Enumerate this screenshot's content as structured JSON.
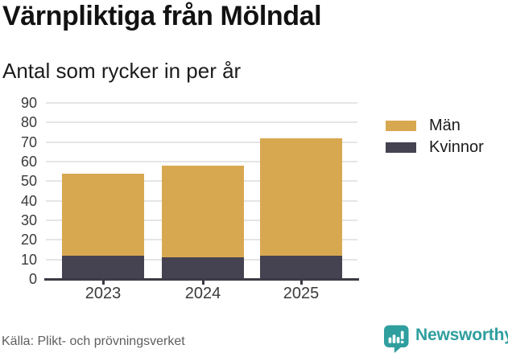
{
  "chart_data": {
    "type": "bar",
    "stacked": true,
    "title": "Värnpliktiga från Mölndal",
    "subtitle": "Antal som rycker in per år",
    "categories": [
      "2023",
      "2024",
      "2025"
    ],
    "series": [
      {
        "name": "Män",
        "color": "#d8a851",
        "values": [
          42,
          47,
          60
        ]
      },
      {
        "name": "Kvinnor",
        "color": "#454252",
        "values": [
          12,
          11,
          12
        ]
      }
    ],
    "totals": [
      54,
      58,
      72
    ],
    "ylim": [
      0,
      90
    ],
    "yticks": [
      0,
      10,
      20,
      30,
      40,
      50,
      60,
      70,
      80,
      90
    ],
    "grid": "horizontal",
    "legend_position": "right",
    "gridline_color": "#e5e5e5",
    "axis_color": "#3b3b45"
  },
  "source": {
    "label": "Källa: Plikt- och prövningsverket"
  },
  "branding": {
    "name": "Newsworthy",
    "color": "#2f9e9e",
    "icon": "newsworthy-bubble-chart-icon"
  }
}
